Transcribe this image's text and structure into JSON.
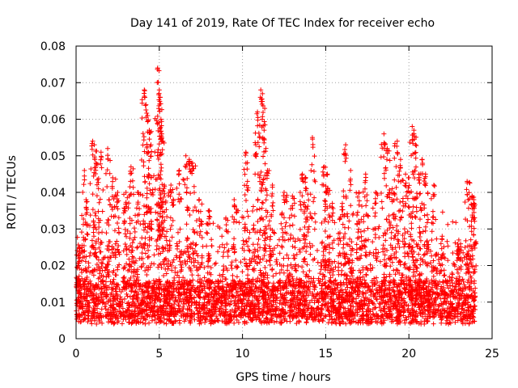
{
  "chart_data": {
    "type": "scatter",
    "title": "Day 141 of 2019, Rate Of TEC Index for receiver echo",
    "xlabel": "GPS time / hours",
    "ylabel": "ROTI / TECUs",
    "xlim": [
      0,
      25
    ],
    "ylim": [
      0,
      0.08
    ],
    "xticks": [
      0,
      5,
      10,
      15,
      20,
      25
    ],
    "xtick_labels": [
      "0",
      "5",
      "10",
      "15",
      "20",
      "25"
    ],
    "yticks": [
      0,
      0.01,
      0.02,
      0.03,
      0.04,
      0.05,
      0.06,
      0.07,
      0.08
    ],
    "ytick_labels": [
      "0",
      "0.01",
      "0.02",
      "0.03",
      "0.04",
      "0.05",
      "0.06",
      "0.07",
      "0.08"
    ],
    "grid": true,
    "legend": "none",
    "marker": "plus",
    "color": "#ff0000",
    "series": [
      {
        "name": "ROTI",
        "x_range": [
          0,
          24
        ],
        "baseline_range": [
          0.004,
          0.016
        ],
        "bulk_upper": 0.035,
        "peaks": [
          {
            "x": 0.2,
            "y": 0.025
          },
          {
            "x": 0.5,
            "y": 0.046
          },
          {
            "x": 0.6,
            "y": 0.038
          },
          {
            "x": 1.0,
            "y": 0.054
          },
          {
            "x": 1.1,
            "y": 0.053
          },
          {
            "x": 1.2,
            "y": 0.048
          },
          {
            "x": 1.5,
            "y": 0.051
          },
          {
            "x": 1.9,
            "y": 0.052
          },
          {
            "x": 2.2,
            "y": 0.044
          },
          {
            "x": 2.5,
            "y": 0.04
          },
          {
            "x": 3.0,
            "y": 0.04
          },
          {
            "x": 3.3,
            "y": 0.047
          },
          {
            "x": 3.7,
            "y": 0.04
          },
          {
            "x": 4.1,
            "y": 0.068
          },
          {
            "x": 4.2,
            "y": 0.064
          },
          {
            "x": 4.3,
            "y": 0.061
          },
          {
            "x": 4.4,
            "y": 0.057
          },
          {
            "x": 4.5,
            "y": 0.053
          },
          {
            "x": 4.9,
            "y": 0.074
          },
          {
            "x": 5.0,
            "y": 0.068
          },
          {
            "x": 5.05,
            "y": 0.066
          },
          {
            "x": 5.1,
            "y": 0.06
          },
          {
            "x": 5.15,
            "y": 0.056
          },
          {
            "x": 5.3,
            "y": 0.042
          },
          {
            "x": 5.7,
            "y": 0.042
          },
          {
            "x": 6.2,
            "y": 0.046
          },
          {
            "x": 6.6,
            "y": 0.05
          },
          {
            "x": 6.8,
            "y": 0.049
          },
          {
            "x": 7.0,
            "y": 0.048
          },
          {
            "x": 7.4,
            "y": 0.038
          },
          {
            "x": 8.0,
            "y": 0.035
          },
          {
            "x": 9.0,
            "y": 0.033
          },
          {
            "x": 9.5,
            "y": 0.038
          },
          {
            "x": 10.2,
            "y": 0.051
          },
          {
            "x": 10.3,
            "y": 0.043
          },
          {
            "x": 10.8,
            "y": 0.053
          },
          {
            "x": 10.9,
            "y": 0.062
          },
          {
            "x": 11.1,
            "y": 0.068
          },
          {
            "x": 11.2,
            "y": 0.067
          },
          {
            "x": 11.3,
            "y": 0.057
          },
          {
            "x": 11.5,
            "y": 0.046
          },
          {
            "x": 11.8,
            "y": 0.042
          },
          {
            "x": 12.5,
            "y": 0.04
          },
          {
            "x": 13.0,
            "y": 0.039
          },
          {
            "x": 13.6,
            "y": 0.045
          },
          {
            "x": 13.8,
            "y": 0.044
          },
          {
            "x": 14.2,
            "y": 0.055
          },
          {
            "x": 14.9,
            "y": 0.047
          },
          {
            "x": 15.1,
            "y": 0.045
          },
          {
            "x": 15.4,
            "y": 0.037
          },
          {
            "x": 16.0,
            "y": 0.037
          },
          {
            "x": 16.2,
            "y": 0.053
          },
          {
            "x": 16.5,
            "y": 0.046
          },
          {
            "x": 17.0,
            "y": 0.04
          },
          {
            "x": 17.4,
            "y": 0.045
          },
          {
            "x": 18.0,
            "y": 0.04
          },
          {
            "x": 18.5,
            "y": 0.056
          },
          {
            "x": 18.7,
            "y": 0.052
          },
          {
            "x": 19.0,
            "y": 0.041
          },
          {
            "x": 19.3,
            "y": 0.054
          },
          {
            "x": 19.5,
            "y": 0.049
          },
          {
            "x": 19.8,
            "y": 0.045
          },
          {
            "x": 20.0,
            "y": 0.044
          },
          {
            "x": 20.2,
            "y": 0.058
          },
          {
            "x": 20.3,
            "y": 0.057
          },
          {
            "x": 20.4,
            "y": 0.053
          },
          {
            "x": 20.6,
            "y": 0.045
          },
          {
            "x": 20.8,
            "y": 0.049
          },
          {
            "x": 21.0,
            "y": 0.045
          },
          {
            "x": 21.5,
            "y": 0.042
          },
          {
            "x": 22.0,
            "y": 0.028
          },
          {
            "x": 23.0,
            "y": 0.027
          },
          {
            "x": 23.5,
            "y": 0.043
          },
          {
            "x": 23.8,
            "y": 0.039
          },
          {
            "x": 23.9,
            "y": 0.038
          }
        ]
      }
    ]
  }
}
